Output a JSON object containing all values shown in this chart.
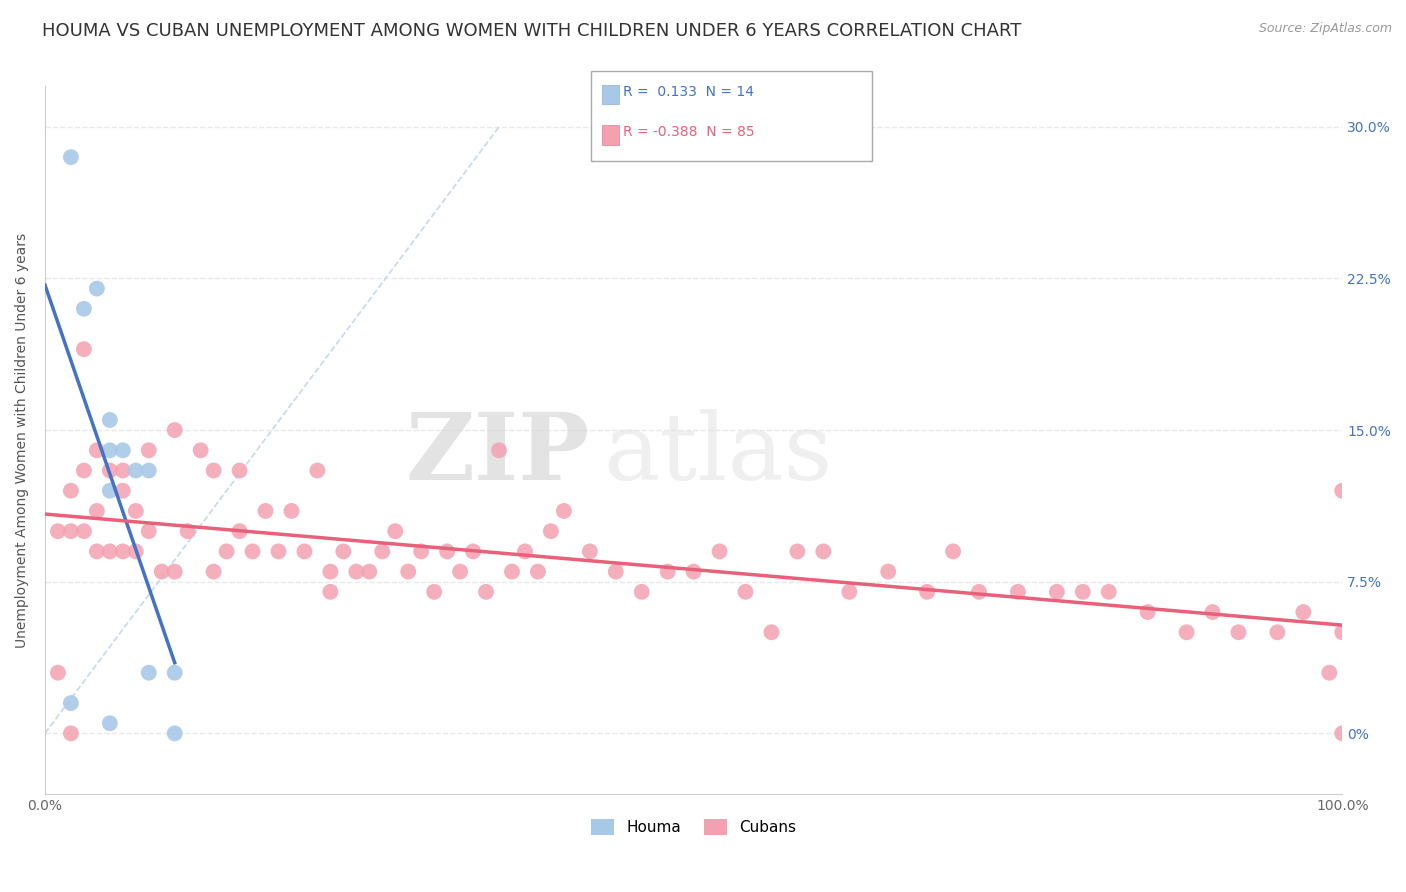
{
  "title": "HOUMA VS CUBAN UNEMPLOYMENT AMONG WOMEN WITH CHILDREN UNDER 6 YEARS CORRELATION CHART",
  "source": "Source: ZipAtlas.com",
  "ylabel": "Unemployment Among Women with Children Under 6 years",
  "xlim": [
    0,
    100
  ],
  "ylim": [
    -3,
    32
  ],
  "houma_color": "#a8c8e8",
  "cuban_color": "#f4a0b0",
  "houma_line_color": "#4472c4",
  "cuban_line_color": "#e8607a",
  "legend_houma_R": "0.133",
  "legend_houma_N": "14",
  "legend_cuban_R": "-0.388",
  "legend_cuban_N": "85",
  "watermark_zip": "ZIP",
  "watermark_atlas": "atlas",
  "houma_x": [
    2,
    2,
    3,
    4,
    5,
    5,
    5,
    5,
    6,
    7,
    8,
    8,
    10,
    10
  ],
  "houma_y": [
    28.5,
    1.5,
    21,
    22,
    15.5,
    14,
    12,
    0.5,
    14,
    13,
    13,
    3,
    3,
    0
  ],
  "cuban_x": [
    1,
    1,
    2,
    2,
    2,
    3,
    3,
    3,
    4,
    4,
    4,
    5,
    5,
    6,
    6,
    6,
    7,
    7,
    8,
    8,
    9,
    10,
    10,
    11,
    12,
    13,
    13,
    14,
    15,
    15,
    16,
    17,
    18,
    19,
    20,
    21,
    22,
    22,
    23,
    24,
    25,
    26,
    27,
    28,
    29,
    30,
    31,
    32,
    33,
    34,
    35,
    36,
    37,
    38,
    39,
    40,
    42,
    44,
    46,
    48,
    50,
    52,
    54,
    56,
    58,
    60,
    62,
    65,
    68,
    70,
    72,
    75,
    78,
    80,
    82,
    85,
    88,
    90,
    92,
    95,
    97,
    99,
    100,
    100,
    100
  ],
  "cuban_y": [
    10,
    3,
    12,
    10,
    0,
    19,
    13,
    10,
    14,
    11,
    9,
    13,
    9,
    13,
    12,
    9,
    11,
    9,
    14,
    10,
    8,
    15,
    8,
    10,
    14,
    13,
    8,
    9,
    13,
    10,
    9,
    11,
    9,
    11,
    9,
    13,
    8,
    7,
    9,
    8,
    8,
    9,
    10,
    8,
    9,
    7,
    9,
    8,
    9,
    7,
    14,
    8,
    9,
    8,
    10,
    11,
    9,
    8,
    7,
    8,
    8,
    9,
    7,
    5,
    9,
    9,
    7,
    8,
    7,
    9,
    7,
    7,
    7,
    7,
    7,
    6,
    5,
    6,
    5,
    5,
    6,
    3,
    12,
    0,
    5
  ],
  "background_color": "#ffffff",
  "grid_color": "#e8e8e8",
  "title_fontsize": 13,
  "label_fontsize": 10,
  "tick_fontsize": 10,
  "ytick_vals": [
    0,
    7.5,
    15.0,
    22.5,
    30.0
  ],
  "ytick_labels": [
    "0%",
    "7.5%",
    "15.0%",
    "22.5%",
    "30.0%"
  ]
}
